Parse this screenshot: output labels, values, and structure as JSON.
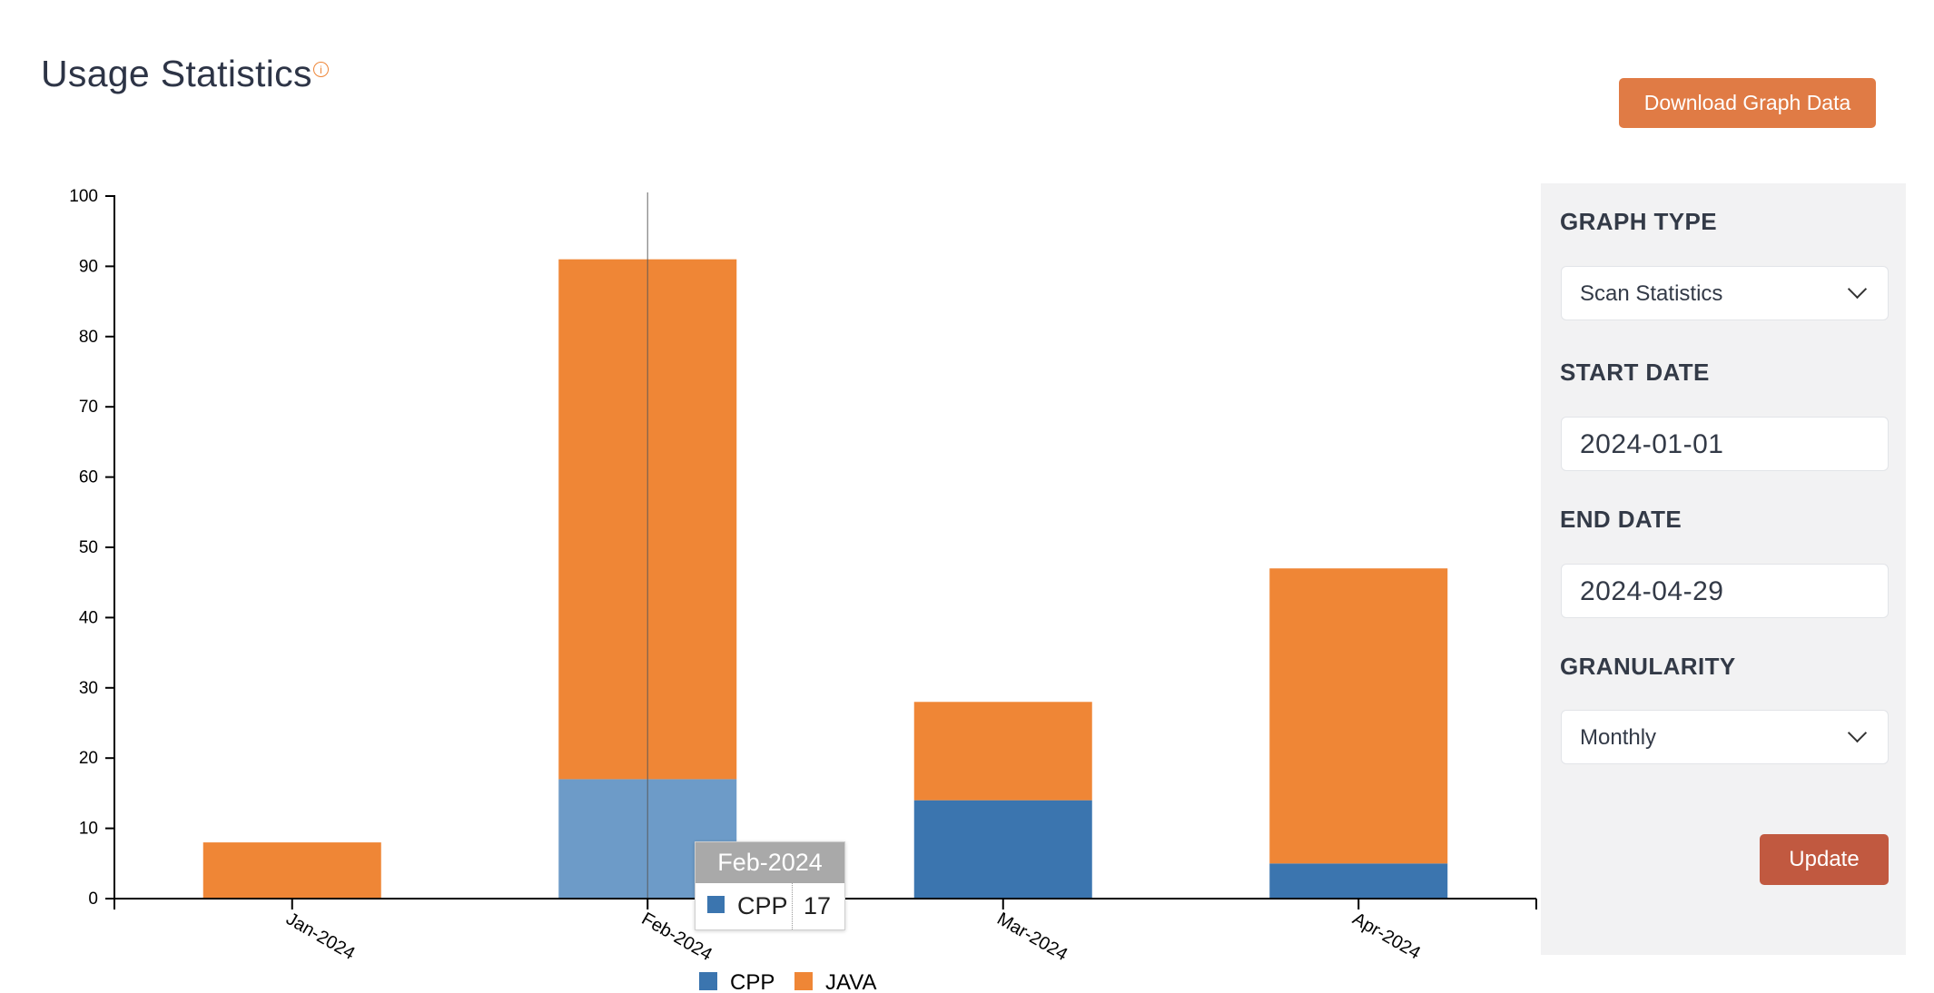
{
  "header": {
    "title": "Usage Statistics",
    "info_icon": "info-icon",
    "download_label": "Download Graph Data"
  },
  "panel": {
    "graph_type_label": "GRAPH TYPE",
    "graph_type_value": "Scan Statistics",
    "start_date_label": "START DATE",
    "start_date_value": "2024-01-01",
    "end_date_label": "END DATE",
    "end_date_value": "2024-04-29",
    "granularity_label": "GRANULARITY",
    "granularity_value": "Monthly",
    "update_label": "Update"
  },
  "tooltip": {
    "title": "Feb-2024",
    "series": "CPP",
    "value": "17"
  },
  "colors": {
    "cpp": "#3b75af",
    "cpp_highlight": "#6d9bc8",
    "java": "#ef8636",
    "download_button": "#e07b45",
    "update_button": "#c15940"
  },
  "chart_data": {
    "type": "bar",
    "stacked": true,
    "categories": [
      "Jan-2024",
      "Feb-2024",
      "Mar-2024",
      "Apr-2024"
    ],
    "series": [
      {
        "name": "CPP",
        "values": [
          0,
          17,
          14,
          5
        ]
      },
      {
        "name": "JAVA",
        "values": [
          8,
          74,
          14,
          42
        ]
      }
    ],
    "ylim": [
      0,
      100
    ],
    "yticks": [
      0,
      10,
      20,
      30,
      40,
      50,
      60,
      70,
      80,
      90,
      100
    ],
    "grid": false,
    "legend": "bottom",
    "highlighted_category": "Feb-2024"
  }
}
